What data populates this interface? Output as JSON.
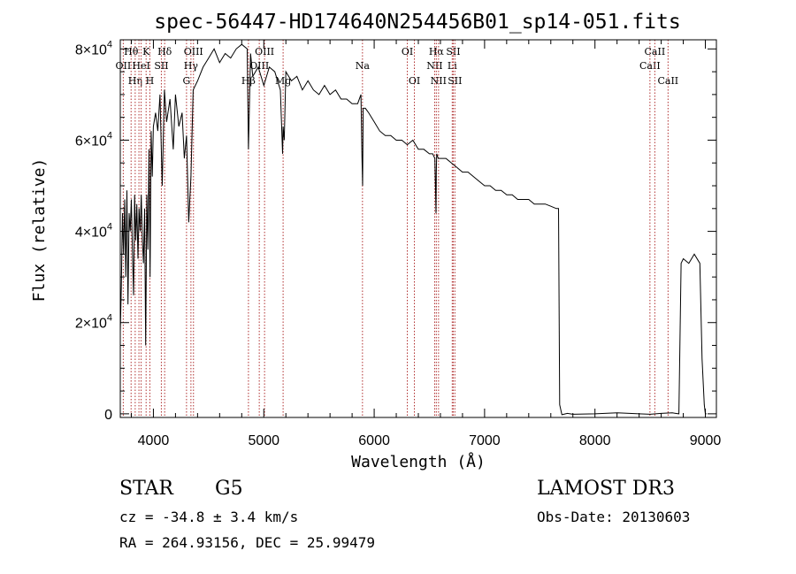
{
  "chart_data": {
    "type": "line",
    "title": "spec-56447-HD174640N254456B01_sp14-051.fits",
    "xlabel": "Wavelength (Å)",
    "ylabel": "Flux (relative)",
    "xlim": [
      3700,
      9100
    ],
    "ylim": [
      -800,
      82000
    ],
    "xticks": [
      {
        "value": 4000,
        "label": "4000"
      },
      {
        "value": 5000,
        "label": "5000"
      },
      {
        "value": 6000,
        "label": "6000"
      },
      {
        "value": 7000,
        "label": "7000"
      },
      {
        "value": 8000,
        "label": "8000"
      },
      {
        "value": 9000,
        "label": "9000"
      }
    ],
    "yticks": [
      {
        "value": 0,
        "mantissa": "0",
        "exponent": ""
      },
      {
        "value": 20000,
        "mantissa": "2×10",
        "exponent": "4"
      },
      {
        "value": 40000,
        "mantissa": "4×10",
        "exponent": "4"
      },
      {
        "value": 60000,
        "mantissa": "6×10",
        "exponent": "4"
      },
      {
        "value": 80000,
        "mantissa": "8×10",
        "exponent": "4"
      }
    ],
    "series": [
      {
        "name": "flux",
        "x": [
          3700,
          3710,
          3720,
          3730,
          3740,
          3750,
          3760,
          3770,
          3780,
          3790,
          3800,
          3810,
          3820,
          3830,
          3840,
          3850,
          3860,
          3870,
          3880,
          3890,
          3900,
          3910,
          3920,
          3930,
          3940,
          3950,
          3960,
          3970,
          3980,
          3990,
          4000,
          4020,
          4040,
          4060,
          4080,
          4100,
          4120,
          4150,
          4180,
          4200,
          4230,
          4260,
          4280,
          4300,
          4320,
          4330,
          4340,
          4360,
          4400,
          4450,
          4500,
          4550,
          4600,
          4650,
          4700,
          4750,
          4800,
          4850,
          4861,
          4880,
          4900,
          4950,
          5000,
          5050,
          5100,
          5150,
          5170,
          5175,
          5185,
          5200,
          5250,
          5300,
          5350,
          5400,
          5450,
          5500,
          5550,
          5600,
          5650,
          5700,
          5750,
          5800,
          5850,
          5880,
          5890,
          5895,
          5900,
          5920,
          5950,
          6000,
          6050,
          6100,
          6150,
          6200,
          6250,
          6300,
          6350,
          6400,
          6450,
          6500,
          6530,
          6550,
          6560,
          6563,
          6567,
          6580,
          6600,
          6650,
          6700,
          6750,
          6800,
          6850,
          6900,
          6950,
          7000,
          7050,
          7100,
          7150,
          7200,
          7250,
          7300,
          7350,
          7400,
          7450,
          7500,
          7550,
          7600,
          7650,
          7670,
          7680,
          7700,
          7750,
          7800,
          8000,
          8200,
          8400,
          8500,
          8600,
          8700,
          8760,
          8780,
          8800,
          8850,
          8900,
          8950,
          8970,
          8990,
          9000,
          9010
        ],
        "y": [
          18000,
          28000,
          44000,
          35000,
          47000,
          30000,
          49000,
          24000,
          44000,
          40000,
          47000,
          36000,
          26000,
          48000,
          38000,
          46000,
          34000,
          45000,
          40000,
          48000,
          38000,
          33000,
          45000,
          15000,
          48000,
          36000,
          58000,
          30000,
          62000,
          52000,
          63000,
          66000,
          62000,
          70000,
          50000,
          71000,
          64000,
          69000,
          58000,
          70000,
          63000,
          66000,
          56000,
          61000,
          42000,
          47000,
          52000,
          71000,
          73000,
          76000,
          78000,
          80000,
          77000,
          79000,
          78000,
          80000,
          81000,
          80000,
          58000,
          79000,
          74000,
          76000,
          72000,
          76000,
          75000,
          71000,
          57000,
          63000,
          60000,
          75000,
          73000,
          74000,
          71000,
          73000,
          71000,
          70000,
          72000,
          70000,
          71000,
          69000,
          69000,
          68000,
          68000,
          70000,
          56000,
          50000,
          67000,
          67000,
          66000,
          64000,
          62000,
          61000,
          61000,
          60000,
          60000,
          59000,
          60000,
          58000,
          58000,
          57000,
          57000,
          56000,
          44000,
          53000,
          57000,
          56000,
          56000,
          56000,
          55000,
          54000,
          53000,
          53000,
          52000,
          51000,
          50000,
          50000,
          49000,
          49000,
          48000,
          48000,
          47000,
          47000,
          47000,
          46000,
          46000,
          46000,
          45500,
          45000,
          45000,
          2000,
          -200,
          100,
          -100,
          0,
          200,
          0,
          -100,
          100,
          200,
          0,
          33000,
          34000,
          33000,
          35000,
          33000,
          12000,
          2000,
          0,
          0
        ]
      }
    ],
    "annotation_lines": [
      {
        "wavelength": 3727,
        "label": "OII",
        "row": 2
      },
      {
        "wavelength": 3798,
        "label": "Hθ",
        "row": 1
      },
      {
        "wavelength": 3835,
        "label": "Hη",
        "row": 3
      },
      {
        "wavelength": 3869,
        "label": "",
        "row": 0
      },
      {
        "wavelength": 3889,
        "label": "HeI",
        "row": 2
      },
      {
        "wavelength": 3934,
        "label": "K",
        "row": 1
      },
      {
        "wavelength": 3968,
        "label": "H",
        "row": 3
      },
      {
        "wavelength": 4072,
        "label": "SII",
        "row": 2
      },
      {
        "wavelength": 4102,
        "label": "Hδ",
        "row": 1
      },
      {
        "wavelength": 4300,
        "label": "G",
        "row": 3
      },
      {
        "wavelength": 4340,
        "label": "Hγ",
        "row": 2
      },
      {
        "wavelength": 4363,
        "label": "OIII",
        "row": 1
      },
      {
        "wavelength": 4861,
        "label": "Hβ",
        "row": 3
      },
      {
        "wavelength": 4959,
        "label": "OIII",
        "row": 2
      },
      {
        "wavelength": 5007,
        "label": "OIII",
        "row": 1
      },
      {
        "wavelength": 5175,
        "label": "Mg",
        "row": 3
      },
      {
        "wavelength": 5894,
        "label": "Na",
        "row": 2
      },
      {
        "wavelength": 6300,
        "label": "OI",
        "row": 1
      },
      {
        "wavelength": 6364,
        "label": "OI",
        "row": 3
      },
      {
        "wavelength": 6548,
        "label": "NII",
        "row": 2
      },
      {
        "wavelength": 6563,
        "label": "Hα",
        "row": 1
      },
      {
        "wavelength": 6583,
        "label": "NII",
        "row": 3
      },
      {
        "wavelength": 6707,
        "label": "Li",
        "row": 2
      },
      {
        "wavelength": 6716,
        "label": "SII",
        "row": 1
      },
      {
        "wavelength": 6731,
        "label": "SII",
        "row": 3
      },
      {
        "wavelength": 8498,
        "label": "CaII",
        "row": 2
      },
      {
        "wavelength": 8542,
        "label": "CaII",
        "row": 1
      },
      {
        "wavelength": 8662,
        "label": "CaII",
        "row": 3
      }
    ],
    "line_color": "#000000",
    "annotation_color": "#b03030"
  },
  "info": {
    "class": "STAR",
    "subclass": "G5",
    "survey": "LAMOST DR3",
    "cz": "cz = -34.8 ± 3.4 km/s",
    "obs_date": "Obs-Date: 20130603",
    "coords": "RA = 264.93156, DEC =  25.99479"
  }
}
